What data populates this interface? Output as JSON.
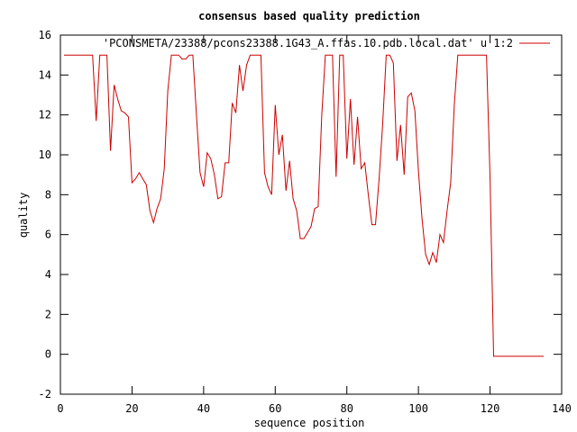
{
  "chart_data": {
    "type": "line",
    "title": "consensus based quality prediction",
    "xlabel": "sequence position",
    "ylabel": "quality",
    "xlim": [
      0,
      140
    ],
    "ylim": [
      -2,
      16
    ],
    "xticks": [
      0,
      20,
      40,
      60,
      80,
      100,
      120,
      140
    ],
    "yticks": [
      -2,
      0,
      2,
      4,
      6,
      8,
      10,
      12,
      14,
      16
    ],
    "grid": false,
    "legend_position": "top-right",
    "series": [
      {
        "name": "'PCONSMETA/23388/pcons23388.1G43_A.ffas.10.pdb.local.dat' u 1:2",
        "color": "#cc0000",
        "x": [
          1,
          2,
          3,
          4,
          5,
          6,
          7,
          8,
          9,
          10,
          11,
          12,
          13,
          14,
          15,
          16,
          17,
          18,
          19,
          20,
          21,
          22,
          23,
          24,
          25,
          26,
          27,
          28,
          29,
          30,
          31,
          32,
          33,
          34,
          35,
          36,
          37,
          38,
          39,
          40,
          41,
          42,
          43,
          44,
          45,
          46,
          47,
          48,
          49,
          50,
          51,
          52,
          53,
          54,
          55,
          56,
          57,
          58,
          59,
          60,
          61,
          62,
          63,
          64,
          65,
          66,
          67,
          68,
          69,
          70,
          71,
          72,
          73,
          74,
          75,
          76,
          77,
          78,
          79,
          80,
          81,
          82,
          83,
          84,
          85,
          86,
          87,
          88,
          89,
          90,
          91,
          92,
          93,
          94,
          95,
          96,
          97,
          98,
          99,
          100,
          101,
          102,
          103,
          104,
          105,
          106,
          107,
          108,
          109,
          110,
          111,
          112,
          113,
          114,
          115,
          116,
          117,
          118,
          119,
          120,
          121,
          122,
          123,
          124,
          125,
          126,
          127,
          128,
          129,
          130,
          131,
          132,
          133,
          134,
          135
        ],
        "y": [
          15,
          15,
          15,
          15,
          15,
          15,
          15,
          15,
          15,
          11.7,
          15,
          15,
          15,
          10.2,
          13.5,
          12.8,
          12.2,
          12.1,
          11.9,
          8.6,
          8.8,
          9.1,
          8.8,
          8.5,
          7.2,
          6.6,
          7.3,
          7.8,
          9.3,
          13.2,
          15,
          15,
          15,
          14.8,
          14.8,
          15,
          15,
          12,
          9.1,
          8.4,
          10.1,
          9.8,
          9,
          7.8,
          7.9,
          9.6,
          9.6,
          12.6,
          12.1,
          14.5,
          13.2,
          14.5,
          15,
          15,
          15,
          15,
          9.1,
          8.4,
          8,
          12.5,
          10,
          11,
          8.2,
          9.7,
          7.8,
          7.2,
          5.8,
          5.8,
          6.1,
          6.4,
          7.3,
          7.4,
          12,
          15,
          15,
          15,
          8.9,
          15,
          15,
          9.8,
          12.8,
          9.5,
          11.9,
          9.3,
          9.6,
          8,
          6.5,
          6.5,
          8.8,
          11.5,
          15,
          15,
          14.6,
          9.7,
          11.5,
          9,
          12.9,
          13.1,
          12.2,
          9.2,
          6.8,
          5,
          4.5,
          5.1,
          4.6,
          6,
          5.6,
          7.2,
          8.6,
          12.5,
          15,
          15,
          15,
          15,
          15,
          15,
          15,
          15,
          15,
          8.8,
          -0.1,
          -0.1,
          -0.1,
          -0.1,
          -0.1,
          -0.1,
          -0.1,
          -0.1,
          -0.1,
          -0.1,
          -0.1,
          -0.1,
          -0.1,
          -0.1,
          -0.1
        ]
      }
    ]
  }
}
